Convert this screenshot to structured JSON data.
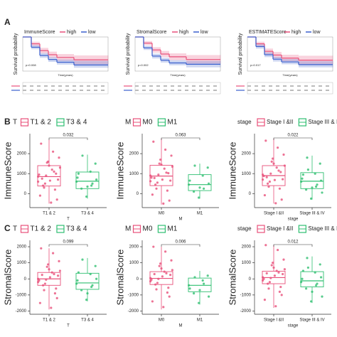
{
  "panel_labels": [
    "A",
    "B",
    "C"
  ],
  "chart_data": [
    {
      "type": "km",
      "legend_title": "ImmuneScore",
      "ylabel": "Survival probability",
      "xlabel": "Time(years)",
      "p_value": "p=0.008",
      "xlim": [
        0,
        10
      ],
      "ylim": [
        0,
        1
      ],
      "x": [
        0,
        1,
        2,
        3,
        4,
        6,
        10
      ],
      "series": [
        {
          "name": "high",
          "color": "#e8507a",
          "values": [
            1,
            0.8,
            0.6,
            0.48,
            0.4,
            0.33,
            0.33
          ],
          "lower": [
            1,
            0.74,
            0.52,
            0.39,
            0.3,
            0.2,
            0.2
          ],
          "upper": [
            1,
            0.86,
            0.68,
            0.57,
            0.5,
            0.46,
            0.46
          ]
        },
        {
          "name": "low",
          "color": "#3a5fcd",
          "values": [
            1,
            0.7,
            0.46,
            0.34,
            0.26,
            0.18,
            0.18
          ],
          "lower": [
            1,
            0.64,
            0.39,
            0.27,
            0.19,
            0.1,
            0.1
          ],
          "upper": [
            1,
            0.76,
            0.53,
            0.41,
            0.34,
            0.3,
            0.3
          ]
        }
      ]
    },
    {
      "type": "km",
      "legend_title": "StromalScore",
      "ylabel": "Survival probability",
      "xlabel": "Time(years)",
      "p_value": "p=0.002",
      "xlim": [
        0,
        10
      ],
      "ylim": [
        0,
        1
      ],
      "x": [
        0,
        1,
        2,
        3,
        4,
        6,
        10
      ],
      "series": [
        {
          "name": "high",
          "color": "#e8507a",
          "values": [
            1,
            0.82,
            0.62,
            0.5,
            0.42,
            0.34,
            0.34
          ],
          "lower": [
            1,
            0.76,
            0.54,
            0.41,
            0.32,
            0.22,
            0.22
          ],
          "upper": [
            1,
            0.88,
            0.7,
            0.59,
            0.52,
            0.47,
            0.47
          ]
        },
        {
          "name": "low",
          "color": "#3a5fcd",
          "values": [
            1,
            0.68,
            0.44,
            0.32,
            0.24,
            0.2,
            0.2
          ],
          "lower": [
            1,
            0.62,
            0.37,
            0.25,
            0.17,
            0.11,
            0.11
          ],
          "upper": [
            1,
            0.74,
            0.51,
            0.39,
            0.32,
            0.3,
            0.3
          ]
        }
      ]
    },
    {
      "type": "km",
      "legend_title": "ESTIMATEScore",
      "ylabel": "Survival probability",
      "xlabel": "Time(years)",
      "p_value": "p=0.017",
      "xlim": [
        0,
        10
      ],
      "ylim": [
        0,
        1
      ],
      "x": [
        0,
        1,
        2,
        3,
        4,
        6,
        10
      ],
      "series": [
        {
          "name": "high",
          "color": "#e8507a",
          "values": [
            1,
            0.8,
            0.58,
            0.47,
            0.38,
            0.32,
            0.32
          ],
          "lower": [
            1,
            0.74,
            0.5,
            0.38,
            0.29,
            0.2,
            0.2
          ],
          "upper": [
            1,
            0.86,
            0.66,
            0.56,
            0.48,
            0.45,
            0.45
          ]
        },
        {
          "name": "low",
          "color": "#3a5fcd",
          "values": [
            1,
            0.72,
            0.48,
            0.35,
            0.27,
            0.19,
            0.19
          ],
          "lower": [
            1,
            0.66,
            0.41,
            0.28,
            0.2,
            0.11,
            0.11
          ],
          "upper": [
            1,
            0.78,
            0.55,
            0.42,
            0.35,
            0.29,
            0.29
          ]
        }
      ]
    },
    {
      "type": "box",
      "legend_title": "T",
      "categories": [
        "T1 & 2",
        "T3 & 4"
      ],
      "colors": [
        "#e8507a",
        "#2fbf71"
      ],
      "xlabel": "T",
      "ylabel": "ImmuneScore",
      "p_value": 0.032,
      "ylim": [
        -700,
        3000
      ],
      "yticks": [
        0,
        1000,
        2000
      ],
      "boxes": [
        {
          "min": -500,
          "q1": 380,
          "median": 850,
          "q3": 1400,
          "max": 2700
        },
        {
          "min": -250,
          "q1": 250,
          "median": 620,
          "q3": 1080,
          "max": 1950
        }
      ],
      "points": [
        [
          850,
          1200,
          400,
          -300,
          1600,
          950,
          2100,
          300,
          700,
          1400,
          -100,
          1100,
          500,
          1800,
          650,
          2500,
          200,
          900,
          1300,
          -450,
          750,
          1000,
          1550,
          600
        ],
        [
          600,
          1100,
          250,
          1500,
          -150,
          800,
          400,
          1900,
          700,
          350,
          1000,
          500
        ]
      ]
    },
    {
      "type": "box",
      "legend_title": "M",
      "categories": [
        "M0",
        "M1"
      ],
      "colors": [
        "#e8507a",
        "#2fbf71"
      ],
      "xlabel": "M",
      "ylabel": "ImmuneScore",
      "p_value": 0.063,
      "ylim": [
        -700,
        3000
      ],
      "yticks": [
        0,
        1000,
        2000
      ],
      "boxes": [
        {
          "min": -550,
          "q1": 400,
          "median": 880,
          "q3": 1420,
          "max": 2750
        },
        {
          "min": -250,
          "q1": 150,
          "median": 450,
          "q3": 950,
          "max": 1500
        }
      ],
      "points": [
        [
          900,
          1250,
          450,
          -350,
          1700,
          800,
          2200,
          250,
          650,
          1450,
          -50,
          1050,
          550,
          1900,
          700,
          2600,
          150,
          950,
          1350,
          -500,
          780,
          1020,
          1500,
          620
        ],
        [
          450,
          900,
          100,
          1300,
          -200,
          650,
          250,
          1400,
          500,
          300
        ]
      ]
    },
    {
      "type": "box",
      "legend_title": "stage",
      "categories": [
        "Stage I &II",
        "Stage III & IV"
      ],
      "colors": [
        "#e8507a",
        "#2fbf71"
      ],
      "xlabel": "stage",
      "ylabel": "ImmuneScore",
      "p_value": 0.022,
      "ylim": [
        -700,
        3000
      ],
      "yticks": [
        0,
        1000,
        2000
      ],
      "boxes": [
        {
          "min": -500,
          "q1": 400,
          "median": 900,
          "q3": 1400,
          "max": 2750
        },
        {
          "min": -300,
          "q1": 250,
          "median": 620,
          "q3": 1050,
          "max": 1900
        }
      ],
      "points": [
        [
          950,
          1300,
          500,
          -300,
          1750,
          880,
          2300,
          350,
          720,
          1500,
          -80,
          1150,
          600,
          1950,
          680,
          2650,
          250,
          1000,
          1400,
          -480,
          820,
          1080,
          1600,
          700
        ],
        [
          600,
          1000,
          200,
          1500,
          -250,
          750,
          350,
          1800,
          650,
          300,
          950,
          450,
          1200,
          50
        ]
      ]
    },
    {
      "type": "box",
      "legend_title": "T",
      "categories": [
        "T1 & 2",
        "T3 & 4"
      ],
      "colors": [
        "#e8507a",
        "#2fbf71"
      ],
      "xlabel": "T",
      "ylabel": "StromalScore",
      "p_value": 0.099,
      "ylim": [
        -2200,
        2400
      ],
      "yticks": [
        -2000,
        -1000,
        0,
        1000,
        2000
      ],
      "boxes": [
        {
          "min": -1900,
          "q1": -400,
          "median": 0,
          "q3": 400,
          "max": 1900
        },
        {
          "min": -1400,
          "q1": -650,
          "median": -250,
          "q3": 350,
          "max": 1300
        }
      ],
      "points": [
        [
          0,
          400,
          -400,
          -1200,
          900,
          -100,
          1600,
          -700,
          200,
          600,
          -1500,
          300,
          -300,
          1100,
          100,
          1900,
          -900,
          -50,
          500,
          -1800,
          250,
          -600,
          750,
          -200
        ],
        [
          -300,
          300,
          -700,
          800,
          -1300,
          -100,
          -500,
          1200,
          0,
          -900,
          400,
          -400
        ]
      ]
    },
    {
      "type": "box",
      "legend_title": "M",
      "categories": [
        "M0",
        "M1"
      ],
      "colors": [
        "#e8507a",
        "#2fbf71"
      ],
      "xlabel": "M",
      "ylabel": "StromalScore",
      "p_value": 0.006,
      "ylim": [
        -2200,
        2400
      ],
      "yticks": [
        -2000,
        -1000,
        0,
        1000,
        2000
      ],
      "boxes": [
        {
          "min": -1900,
          "q1": -350,
          "median": 30,
          "q3": 450,
          "max": 2000
        },
        {
          "min": -1600,
          "q1": -800,
          "median": -400,
          "q3": 50,
          "max": 500
        }
      ],
      "points": [
        [
          50,
          450,
          -350,
          -1100,
          950,
          -50,
          1700,
          -650,
          250,
          650,
          -1400,
          350,
          -250,
          1150,
          150,
          2000,
          -850,
          0,
          550,
          -1750,
          300,
          -550,
          800,
          -150
        ],
        [
          -400,
          -100,
          -900,
          200,
          -1500,
          -600,
          -300,
          100,
          -1100,
          -700
        ]
      ]
    },
    {
      "type": "box",
      "legend_title": "stage",
      "categories": [
        "Stage I &II",
        "Stage III & IV"
      ],
      "colors": [
        "#e8507a",
        "#2fbf71"
      ],
      "xlabel": "stage",
      "ylabel": "StromalScore",
      "p_value": 0.012,
      "ylim": [
        -2200,
        2400
      ],
      "yticks": [
        -2000,
        -1000,
        0,
        1000,
        2000
      ],
      "boxes": [
        {
          "min": -1800,
          "q1": -300,
          "median": 80,
          "q3": 480,
          "max": 2100
        },
        {
          "min": -1500,
          "q1": -500,
          "median": -120,
          "q3": 450,
          "max": 1400
        }
      ],
      "points": [
        [
          100,
          500,
          -300,
          -1000,
          1000,
          0,
          1800,
          -600,
          300,
          700,
          -1300,
          400,
          -200,
          1200,
          200,
          2100,
          -800,
          50,
          600,
          -1700,
          350,
          -500,
          850,
          -100
        ],
        [
          -200,
          400,
          -600,
          900,
          -1400,
          0,
          -400,
          1300,
          100,
          -800,
          500,
          -300,
          700,
          -1100
        ]
      ]
    }
  ]
}
